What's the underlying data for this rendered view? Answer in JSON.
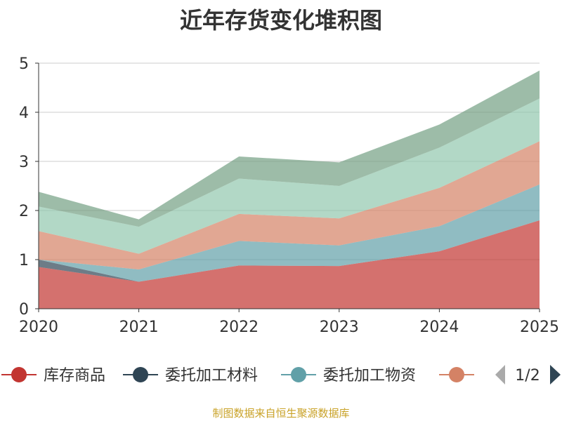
{
  "chart_data": {
    "type": "area",
    "stacked": true,
    "title": "近年存货变化堆积图",
    "ylabel": "",
    "xlabel": "",
    "categories": [
      "2020",
      "2021",
      "2022",
      "2023",
      "2024",
      "2025"
    ],
    "ylim": [
      0,
      5
    ],
    "yticks": [
      0,
      1,
      2,
      3,
      4,
      5
    ],
    "grid": true,
    "series": [
      {
        "name": "库存商品",
        "color": "#c23531",
        "values": [
          0.85,
          0.55,
          0.88,
          0.87,
          1.17,
          1.8
        ]
      },
      {
        "name": "委托加工材料",
        "color": "#2f4554",
        "values": [
          0.15,
          0.0,
          0.0,
          0.0,
          0.0,
          0.0
        ]
      },
      {
        "name": "委托加工物资",
        "color": "#61a0a8",
        "values": [
          0.0,
          0.25,
          0.5,
          0.42,
          0.51,
          0.73
        ]
      },
      {
        "name": "",
        "color": "#d48265",
        "values": [
          0.58,
          0.32,
          0.55,
          0.55,
          0.78,
          0.88
        ]
      },
      {
        "name": "",
        "color": "#91c7ae",
        "values": [
          0.5,
          0.55,
          0.72,
          0.66,
          0.82,
          0.87
        ]
      },
      {
        "name": "",
        "color": "#749f83",
        "values": [
          0.3,
          0.15,
          0.45,
          0.48,
          0.47,
          0.57
        ]
      }
    ],
    "legend": {
      "position": "bottom",
      "page": "1/2",
      "visible_count": 4
    }
  },
  "source": "制图数据来自恒生聚源数据库"
}
